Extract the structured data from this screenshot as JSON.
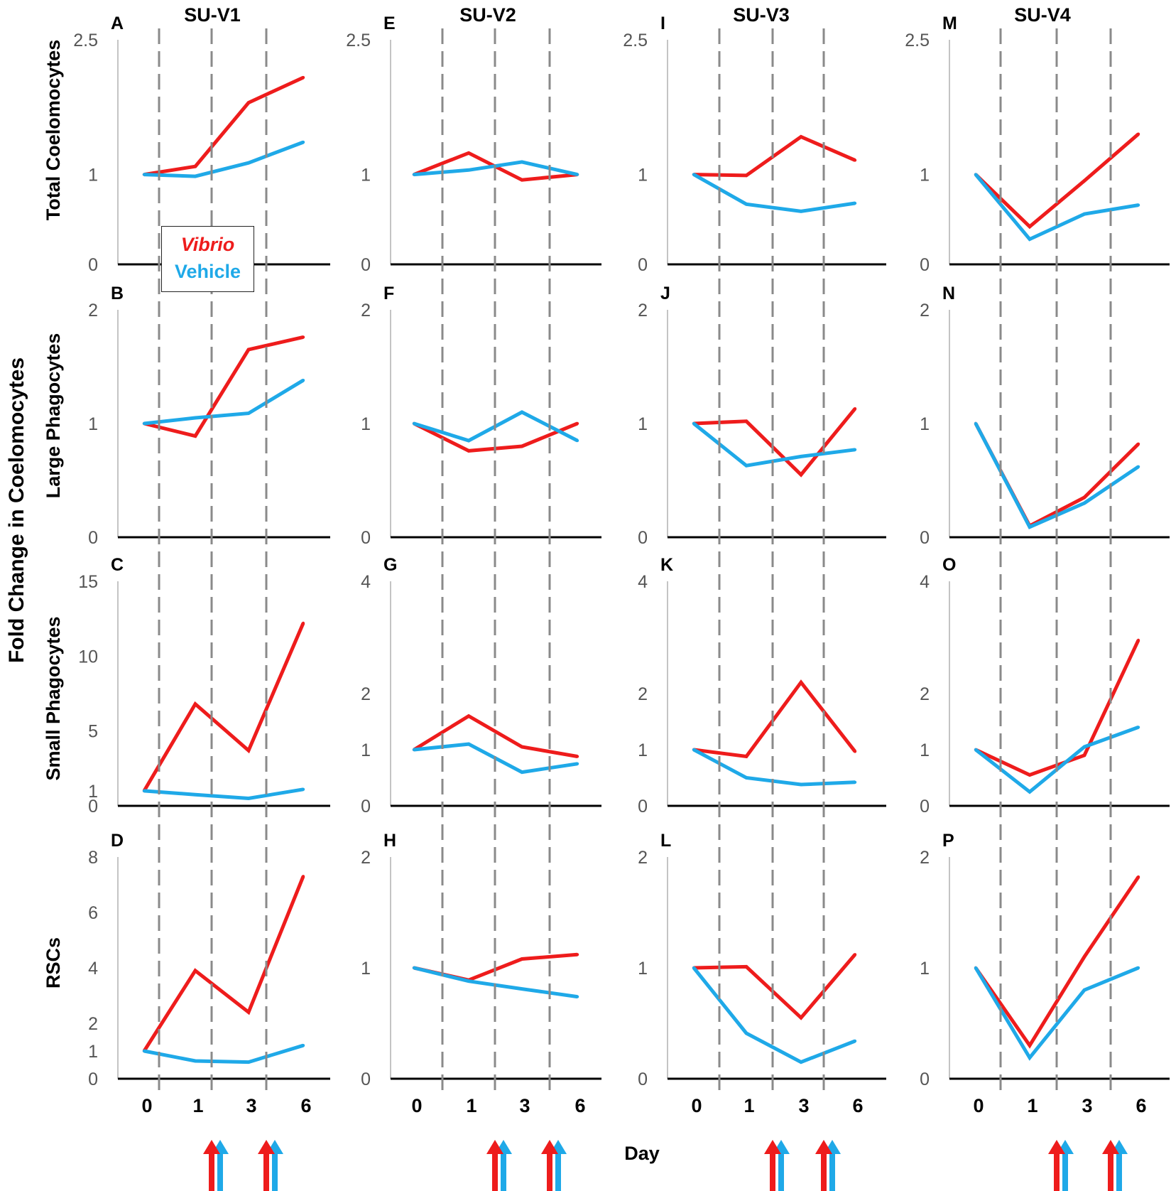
{
  "figure": {
    "y_axis_title": "Fold Change in Coelomocytes",
    "x_axis_title": "Day",
    "colors": {
      "vibrio": "#ee1c1c",
      "vehicle": "#1fa9e8",
      "guide": "#8a8a8a",
      "axis": "#000000"
    }
  },
  "legend": {
    "entries": [
      {
        "label": "Vibrio",
        "color": "#ee1c1c"
      },
      {
        "label": "Vehicle",
        "color": "#1fa9e8"
      }
    ]
  },
  "columns": [
    "SU-V1",
    "SU-V2",
    "SU-V3",
    "SU-V4"
  ],
  "rows": [
    "Total Coelomocytes",
    "Large Phagocytes",
    "Small Phagocytes",
    "RSCs"
  ],
  "x_tick_labels": [
    "0",
    "1",
    "3",
    "6"
  ],
  "chart_data": [
    {
      "type": "line",
      "panel": "A",
      "column": "SU-V1",
      "row": "Total Coelomocytes",
      "categories": [
        "0",
        "1",
        "3",
        "6"
      ],
      "ylim": [
        0,
        2.5
      ],
      "y_ticks": [
        0,
        1,
        2.5
      ],
      "series": [
        {
          "name": "Vibrio",
          "values": [
            1.0,
            1.09,
            1.8,
            2.08
          ]
        },
        {
          "name": "Vehicle",
          "values": [
            1.0,
            0.98,
            1.13,
            1.36
          ]
        }
      ]
    },
    {
      "type": "line",
      "panel": "B",
      "column": "SU-V1",
      "row": "Large Phagocytes",
      "categories": [
        "0",
        "1",
        "3",
        "6"
      ],
      "ylim": [
        0,
        2
      ],
      "y_ticks": [
        0,
        1,
        2
      ],
      "series": [
        {
          "name": "Vibrio",
          "values": [
            1.0,
            0.89,
            1.65,
            1.76
          ]
        },
        {
          "name": "Vehicle",
          "values": [
            1.0,
            1.05,
            1.09,
            1.38
          ]
        }
      ]
    },
    {
      "type": "line",
      "panel": "C",
      "column": "SU-V1",
      "row": "Small Phagocytes",
      "categories": [
        "0",
        "1",
        "3",
        "6"
      ],
      "ylim": [
        0,
        15
      ],
      "y_ticks": [
        0,
        1,
        5,
        10,
        15
      ],
      "series": [
        {
          "name": "Vibrio",
          "values": [
            1.0,
            6.8,
            3.7,
            12.2
          ]
        },
        {
          "name": "Vehicle",
          "values": [
            1.0,
            0.75,
            0.5,
            1.1
          ]
        }
      ]
    },
    {
      "type": "line",
      "panel": "D",
      "column": "SU-V1",
      "row": "RSCs",
      "categories": [
        "0",
        "1",
        "3",
        "6"
      ],
      "ylim": [
        0,
        8
      ],
      "y_ticks": [
        0,
        1,
        2,
        4,
        6,
        8
      ],
      "series": [
        {
          "name": "Vibrio",
          "values": [
            1.0,
            3.9,
            2.4,
            7.3
          ]
        },
        {
          "name": "Vehicle",
          "values": [
            1.0,
            0.64,
            0.6,
            1.2
          ]
        }
      ]
    },
    {
      "type": "line",
      "panel": "E",
      "column": "SU-V2",
      "row": "Total Coelomocytes",
      "categories": [
        "0",
        "1",
        "3",
        "6"
      ],
      "ylim": [
        0,
        2.5
      ],
      "y_ticks": [
        0,
        1,
        2.5
      ],
      "series": [
        {
          "name": "Vibrio",
          "values": [
            1.0,
            1.24,
            0.94,
            1.0
          ]
        },
        {
          "name": "Vehicle",
          "values": [
            1.0,
            1.05,
            1.14,
            1.0
          ]
        }
      ]
    },
    {
      "type": "line",
      "panel": "F",
      "column": "SU-V2",
      "row": "Large Phagocytes",
      "categories": [
        "0",
        "1",
        "3",
        "6"
      ],
      "ylim": [
        0,
        2
      ],
      "y_ticks": [
        0,
        1,
        2
      ],
      "series": [
        {
          "name": "Vibrio",
          "values": [
            1.0,
            0.76,
            0.8,
            1.0
          ]
        },
        {
          "name": "Vehicle",
          "values": [
            1.0,
            0.85,
            1.1,
            0.85
          ]
        }
      ]
    },
    {
      "type": "line",
      "panel": "G",
      "column": "SU-V2",
      "row": "Small Phagocytes",
      "categories": [
        "0",
        "1",
        "3",
        "6"
      ],
      "ylim": [
        0,
        4
      ],
      "y_ticks": [
        0,
        1,
        2,
        4
      ],
      "series": [
        {
          "name": "Vibrio",
          "values": [
            1.0,
            1.6,
            1.05,
            0.88
          ]
        },
        {
          "name": "Vehicle",
          "values": [
            1.0,
            1.1,
            0.6,
            0.75
          ]
        }
      ]
    },
    {
      "type": "line",
      "panel": "H",
      "column": "SU-V2",
      "row": "RSCs",
      "categories": [
        "0",
        "1",
        "3",
        "6"
      ],
      "ylim": [
        0,
        2
      ],
      "y_ticks": [
        0,
        1,
        2
      ],
      "series": [
        {
          "name": "Vibrio",
          "values": [
            1.0,
            0.89,
            1.08,
            1.12
          ]
        },
        {
          "name": "Vehicle",
          "values": [
            1.0,
            0.88,
            0.81,
            0.74
          ]
        }
      ]
    },
    {
      "type": "line",
      "panel": "I",
      "column": "SU-V3",
      "row": "Total Coelomocytes",
      "categories": [
        "0",
        "1",
        "3",
        "6"
      ],
      "ylim": [
        0,
        2.5
      ],
      "y_ticks": [
        0,
        1,
        2.5
      ],
      "series": [
        {
          "name": "Vibrio",
          "values": [
            1.0,
            0.99,
            1.42,
            1.16
          ]
        },
        {
          "name": "Vehicle",
          "values": [
            1.0,
            0.67,
            0.59,
            0.68
          ]
        }
      ]
    },
    {
      "type": "line",
      "panel": "J",
      "column": "SU-V3",
      "row": "Large Phagocytes",
      "categories": [
        "0",
        "1",
        "3",
        "6"
      ],
      "ylim": [
        0,
        2
      ],
      "y_ticks": [
        0,
        1,
        2
      ],
      "series": [
        {
          "name": "Vibrio",
          "values": [
            1.0,
            1.02,
            0.55,
            1.13
          ]
        },
        {
          "name": "Vehicle",
          "values": [
            1.0,
            0.63,
            0.71,
            0.77
          ]
        }
      ]
    },
    {
      "type": "line",
      "panel": "K",
      "column": "SU-V3",
      "row": "Small Phagocytes",
      "categories": [
        "0",
        "1",
        "3",
        "6"
      ],
      "ylim": [
        0,
        4
      ],
      "y_ticks": [
        0,
        1,
        2,
        4
      ],
      "series": [
        {
          "name": "Vibrio",
          "values": [
            1.0,
            0.88,
            2.2,
            0.97
          ]
        },
        {
          "name": "Vehicle",
          "values": [
            1.0,
            0.5,
            0.38,
            0.42
          ]
        }
      ]
    },
    {
      "type": "line",
      "panel": "L",
      "column": "SU-V3",
      "row": "RSCs",
      "categories": [
        "0",
        "1",
        "3",
        "6"
      ],
      "ylim": [
        0,
        2
      ],
      "y_ticks": [
        0,
        1,
        2
      ],
      "series": [
        {
          "name": "Vibrio",
          "values": [
            1.0,
            1.01,
            0.55,
            1.12
          ]
        },
        {
          "name": "Vehicle",
          "values": [
            1.0,
            0.41,
            0.15,
            0.34
          ]
        }
      ]
    },
    {
      "type": "line",
      "panel": "M",
      "column": "SU-V4",
      "row": "Total Coelomocytes",
      "categories": [
        "0",
        "1",
        "3",
        "6"
      ],
      "ylim": [
        0,
        2.5
      ],
      "y_ticks": [
        0,
        1,
        2.5
      ],
      "series": [
        {
          "name": "Vibrio",
          "values": [
            1.0,
            0.42,
            0.93,
            1.45
          ]
        },
        {
          "name": "Vehicle",
          "values": [
            1.0,
            0.28,
            0.56,
            0.66
          ]
        }
      ]
    },
    {
      "type": "line",
      "panel": "N",
      "column": "SU-V4",
      "row": "Large Phagocytes",
      "categories": [
        "0",
        "1",
        "3",
        "6"
      ],
      "ylim": [
        0,
        2
      ],
      "y_ticks": [
        0,
        1,
        2
      ],
      "series": [
        {
          "name": "Vibrio",
          "values": [
            1.0,
            0.1,
            0.35,
            0.82
          ]
        },
        {
          "name": "Vehicle",
          "values": [
            1.0,
            0.09,
            0.3,
            0.62
          ]
        }
      ]
    },
    {
      "type": "line",
      "panel": "O",
      "column": "SU-V4",
      "row": "Small Phagocytes",
      "categories": [
        "0",
        "1",
        "3",
        "6"
      ],
      "ylim": [
        0,
        4
      ],
      "y_ticks": [
        0,
        1,
        2,
        4
      ],
      "series": [
        {
          "name": "Vibrio",
          "values": [
            1.0,
            0.55,
            0.9,
            2.95
          ]
        },
        {
          "name": "Vehicle",
          "values": [
            1.0,
            0.25,
            1.05,
            1.4
          ]
        }
      ]
    },
    {
      "type": "line",
      "panel": "P",
      "column": "SU-V4",
      "row": "RSCs",
      "categories": [
        "0",
        "1",
        "3",
        "6"
      ],
      "ylim": [
        0,
        2
      ],
      "y_ticks": [
        0,
        1,
        2
      ],
      "series": [
        {
          "name": "Vibrio",
          "values": [
            1.0,
            0.3,
            1.1,
            1.82
          ]
        },
        {
          "name": "Vehicle",
          "values": [
            1.0,
            0.19,
            0.8,
            1.0
          ]
        }
      ]
    }
  ]
}
